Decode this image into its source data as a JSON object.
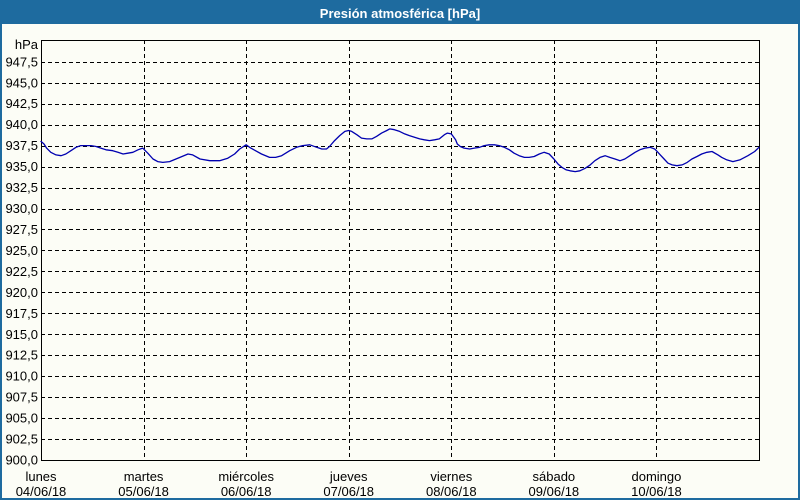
{
  "window": {
    "title": "Presión atmosférica [hPa]",
    "titlebar_color": "#1e6b9f",
    "border_color": "#1e6b9f",
    "background_color": "#fcfdf6"
  },
  "chart_data": {
    "type": "line",
    "title": "Presión atmosférica [hPa]",
    "ylabel": "hPa",
    "unit_label": "hPa",
    "grid": "dashed",
    "legend_position": "none",
    "line_color": "#0000b0",
    "grid_color": "#000000",
    "ylim": [
      900,
      950.1
    ],
    "ytick_step": 2.5,
    "yticks": [
      947.5,
      945.0,
      942.5,
      940.0,
      937.5,
      935.0,
      932.5,
      930.0,
      927.5,
      925.0,
      922.5,
      920.0,
      917.5,
      915.0,
      912.5,
      910.0,
      907.5,
      905.0,
      902.5,
      900.0
    ],
    "ytick_labels": [
      "947,5",
      "945,0",
      "942,5",
      "940,0",
      "937,5",
      "935,0",
      "932,5",
      "930,0",
      "927,5",
      "925,0",
      "922,5",
      "920,0",
      "917,5",
      "915,0",
      "912,5",
      "910,0",
      "907,5",
      "905,0",
      "902,5",
      "900,0"
    ],
    "x_hours_total": 168,
    "hours_per_day": 24,
    "days": [
      {
        "name": "lunes",
        "date": "04/06/18"
      },
      {
        "name": "martes",
        "date": "05/06/18"
      },
      {
        "name": "miércoles",
        "date": "06/06/18"
      },
      {
        "name": "jueves",
        "date": "07/06/18"
      },
      {
        "name": "viernes",
        "date": "08/06/18"
      },
      {
        "name": "sábado",
        "date": "09/06/18"
      },
      {
        "name": "domingo",
        "date": "10/06/18"
      }
    ],
    "series": [
      {
        "name": "Presión atmosférica [hPa]",
        "points": [
          [
            0,
            938.0
          ],
          [
            0.7,
            937.7
          ],
          [
            1.3,
            937.2
          ],
          [
            2.3,
            936.7
          ],
          [
            3.5,
            936.4
          ],
          [
            4.7,
            936.3
          ],
          [
            5.8,
            936.5
          ],
          [
            7,
            936.9
          ],
          [
            8.2,
            937.3
          ],
          [
            9.3,
            937.5
          ],
          [
            10.5,
            937.5
          ],
          [
            11.7,
            937.5
          ],
          [
            12.9,
            937.4
          ],
          [
            14,
            937.2
          ],
          [
            15.2,
            937.0
          ],
          [
            16.8,
            936.9
          ],
          [
            18,
            936.7
          ],
          [
            19.2,
            936.5
          ],
          [
            20.3,
            936.6
          ],
          [
            21.5,
            936.7
          ],
          [
            22.7,
            937.0
          ],
          [
            23.8,
            937.2
          ],
          [
            25,
            936.6
          ],
          [
            26.2,
            935.9
          ],
          [
            27.3,
            935.6
          ],
          [
            28.5,
            935.5
          ],
          [
            30.1,
            935.6
          ],
          [
            32.5,
            936.1
          ],
          [
            34.4,
            936.5
          ],
          [
            35.5,
            936.4
          ],
          [
            37.2,
            935.9
          ],
          [
            39.5,
            935.7
          ],
          [
            41.8,
            935.7
          ],
          [
            43.7,
            936.0
          ],
          [
            45.3,
            936.5
          ],
          [
            46.5,
            937.1
          ],
          [
            48,
            937.6
          ],
          [
            49.1,
            937.2
          ],
          [
            50.2,
            936.9
          ],
          [
            51.6,
            936.5
          ],
          [
            53.5,
            936.1
          ],
          [
            54.9,
            936.1
          ],
          [
            56.3,
            936.3
          ],
          [
            58.2,
            936.9
          ],
          [
            59.8,
            937.3
          ],
          [
            61.2,
            937.5
          ],
          [
            62.9,
            937.6
          ],
          [
            64.5,
            937.3
          ],
          [
            65.7,
            937.1
          ],
          [
            66.8,
            937.1
          ],
          [
            67.5,
            937.4
          ],
          [
            68.7,
            938.1
          ],
          [
            69.9,
            938.7
          ],
          [
            71.1,
            939.2
          ],
          [
            72,
            939.3
          ],
          [
            72.7,
            939.2
          ],
          [
            73.9,
            938.8
          ],
          [
            75,
            938.4
          ],
          [
            76.2,
            938.3
          ],
          [
            77.4,
            938.3
          ],
          [
            78.5,
            938.6
          ],
          [
            79.7,
            939.0
          ],
          [
            80.9,
            939.3
          ],
          [
            81.6,
            939.5
          ],
          [
            82.7,
            939.4
          ],
          [
            83.9,
            939.2
          ],
          [
            85.1,
            938.9
          ],
          [
            86.2,
            938.7
          ],
          [
            87.4,
            938.5
          ],
          [
            88.6,
            938.3
          ],
          [
            89.7,
            938.2
          ],
          [
            90.9,
            938.1
          ],
          [
            92.1,
            938.2
          ],
          [
            93.2,
            938.3
          ],
          [
            94.4,
            938.8
          ],
          [
            95.1,
            939.0
          ],
          [
            96,
            938.9
          ],
          [
            97,
            938.2
          ],
          [
            97.4,
            937.7
          ],
          [
            98.1,
            937.4
          ],
          [
            99,
            937.2
          ],
          [
            100.3,
            937.1
          ],
          [
            101.4,
            937.2
          ],
          [
            102.6,
            937.3
          ],
          [
            103.7,
            937.5
          ],
          [
            104.9,
            937.6
          ],
          [
            106.1,
            937.6
          ],
          [
            107.2,
            937.5
          ],
          [
            108.4,
            937.3
          ],
          [
            109.6,
            937.0
          ],
          [
            110.7,
            936.6
          ],
          [
            111.9,
            936.3
          ],
          [
            113.1,
            936.1
          ],
          [
            114.2,
            936.1
          ],
          [
            115.4,
            936.2
          ],
          [
            116.6,
            936.5
          ],
          [
            117.7,
            936.7
          ],
          [
            118.9,
            936.5
          ],
          [
            120,
            935.9
          ],
          [
            121,
            935.3
          ],
          [
            121.9,
            934.9
          ],
          [
            122.9,
            934.6
          ],
          [
            123.8,
            934.5
          ],
          [
            125,
            934.4
          ],
          [
            126.1,
            934.5
          ],
          [
            127.3,
            934.8
          ],
          [
            128.5,
            935.2
          ],
          [
            129.6,
            935.7
          ],
          [
            130.8,
            936.1
          ],
          [
            132,
            936.3
          ],
          [
            133.1,
            936.1
          ],
          [
            134.3,
            935.9
          ],
          [
            135.5,
            935.7
          ],
          [
            136.6,
            935.9
          ],
          [
            137.8,
            936.3
          ],
          [
            139,
            936.7
          ],
          [
            140.1,
            937.0
          ],
          [
            141.3,
            937.2
          ],
          [
            142.5,
            937.3
          ],
          [
            143.6,
            937.1
          ],
          [
            144,
            936.9
          ],
          [
            144.9,
            936.4
          ],
          [
            145.8,
            935.9
          ],
          [
            146.7,
            935.4
          ],
          [
            147.7,
            935.2
          ],
          [
            148.8,
            935.1
          ],
          [
            150,
            935.2
          ],
          [
            151.2,
            935.5
          ],
          [
            152.3,
            935.9
          ],
          [
            153.5,
            936.2
          ],
          [
            154.6,
            936.5
          ],
          [
            155.8,
            936.7
          ],
          [
            157,
            936.8
          ],
          [
            158.4,
            936.4
          ],
          [
            159.3,
            936.1
          ],
          [
            160.5,
            935.8
          ],
          [
            161.9,
            935.6
          ],
          [
            163.5,
            935.8
          ],
          [
            165.4,
            936.3
          ],
          [
            167,
            936.8
          ],
          [
            168,
            937.3
          ]
        ]
      }
    ]
  }
}
